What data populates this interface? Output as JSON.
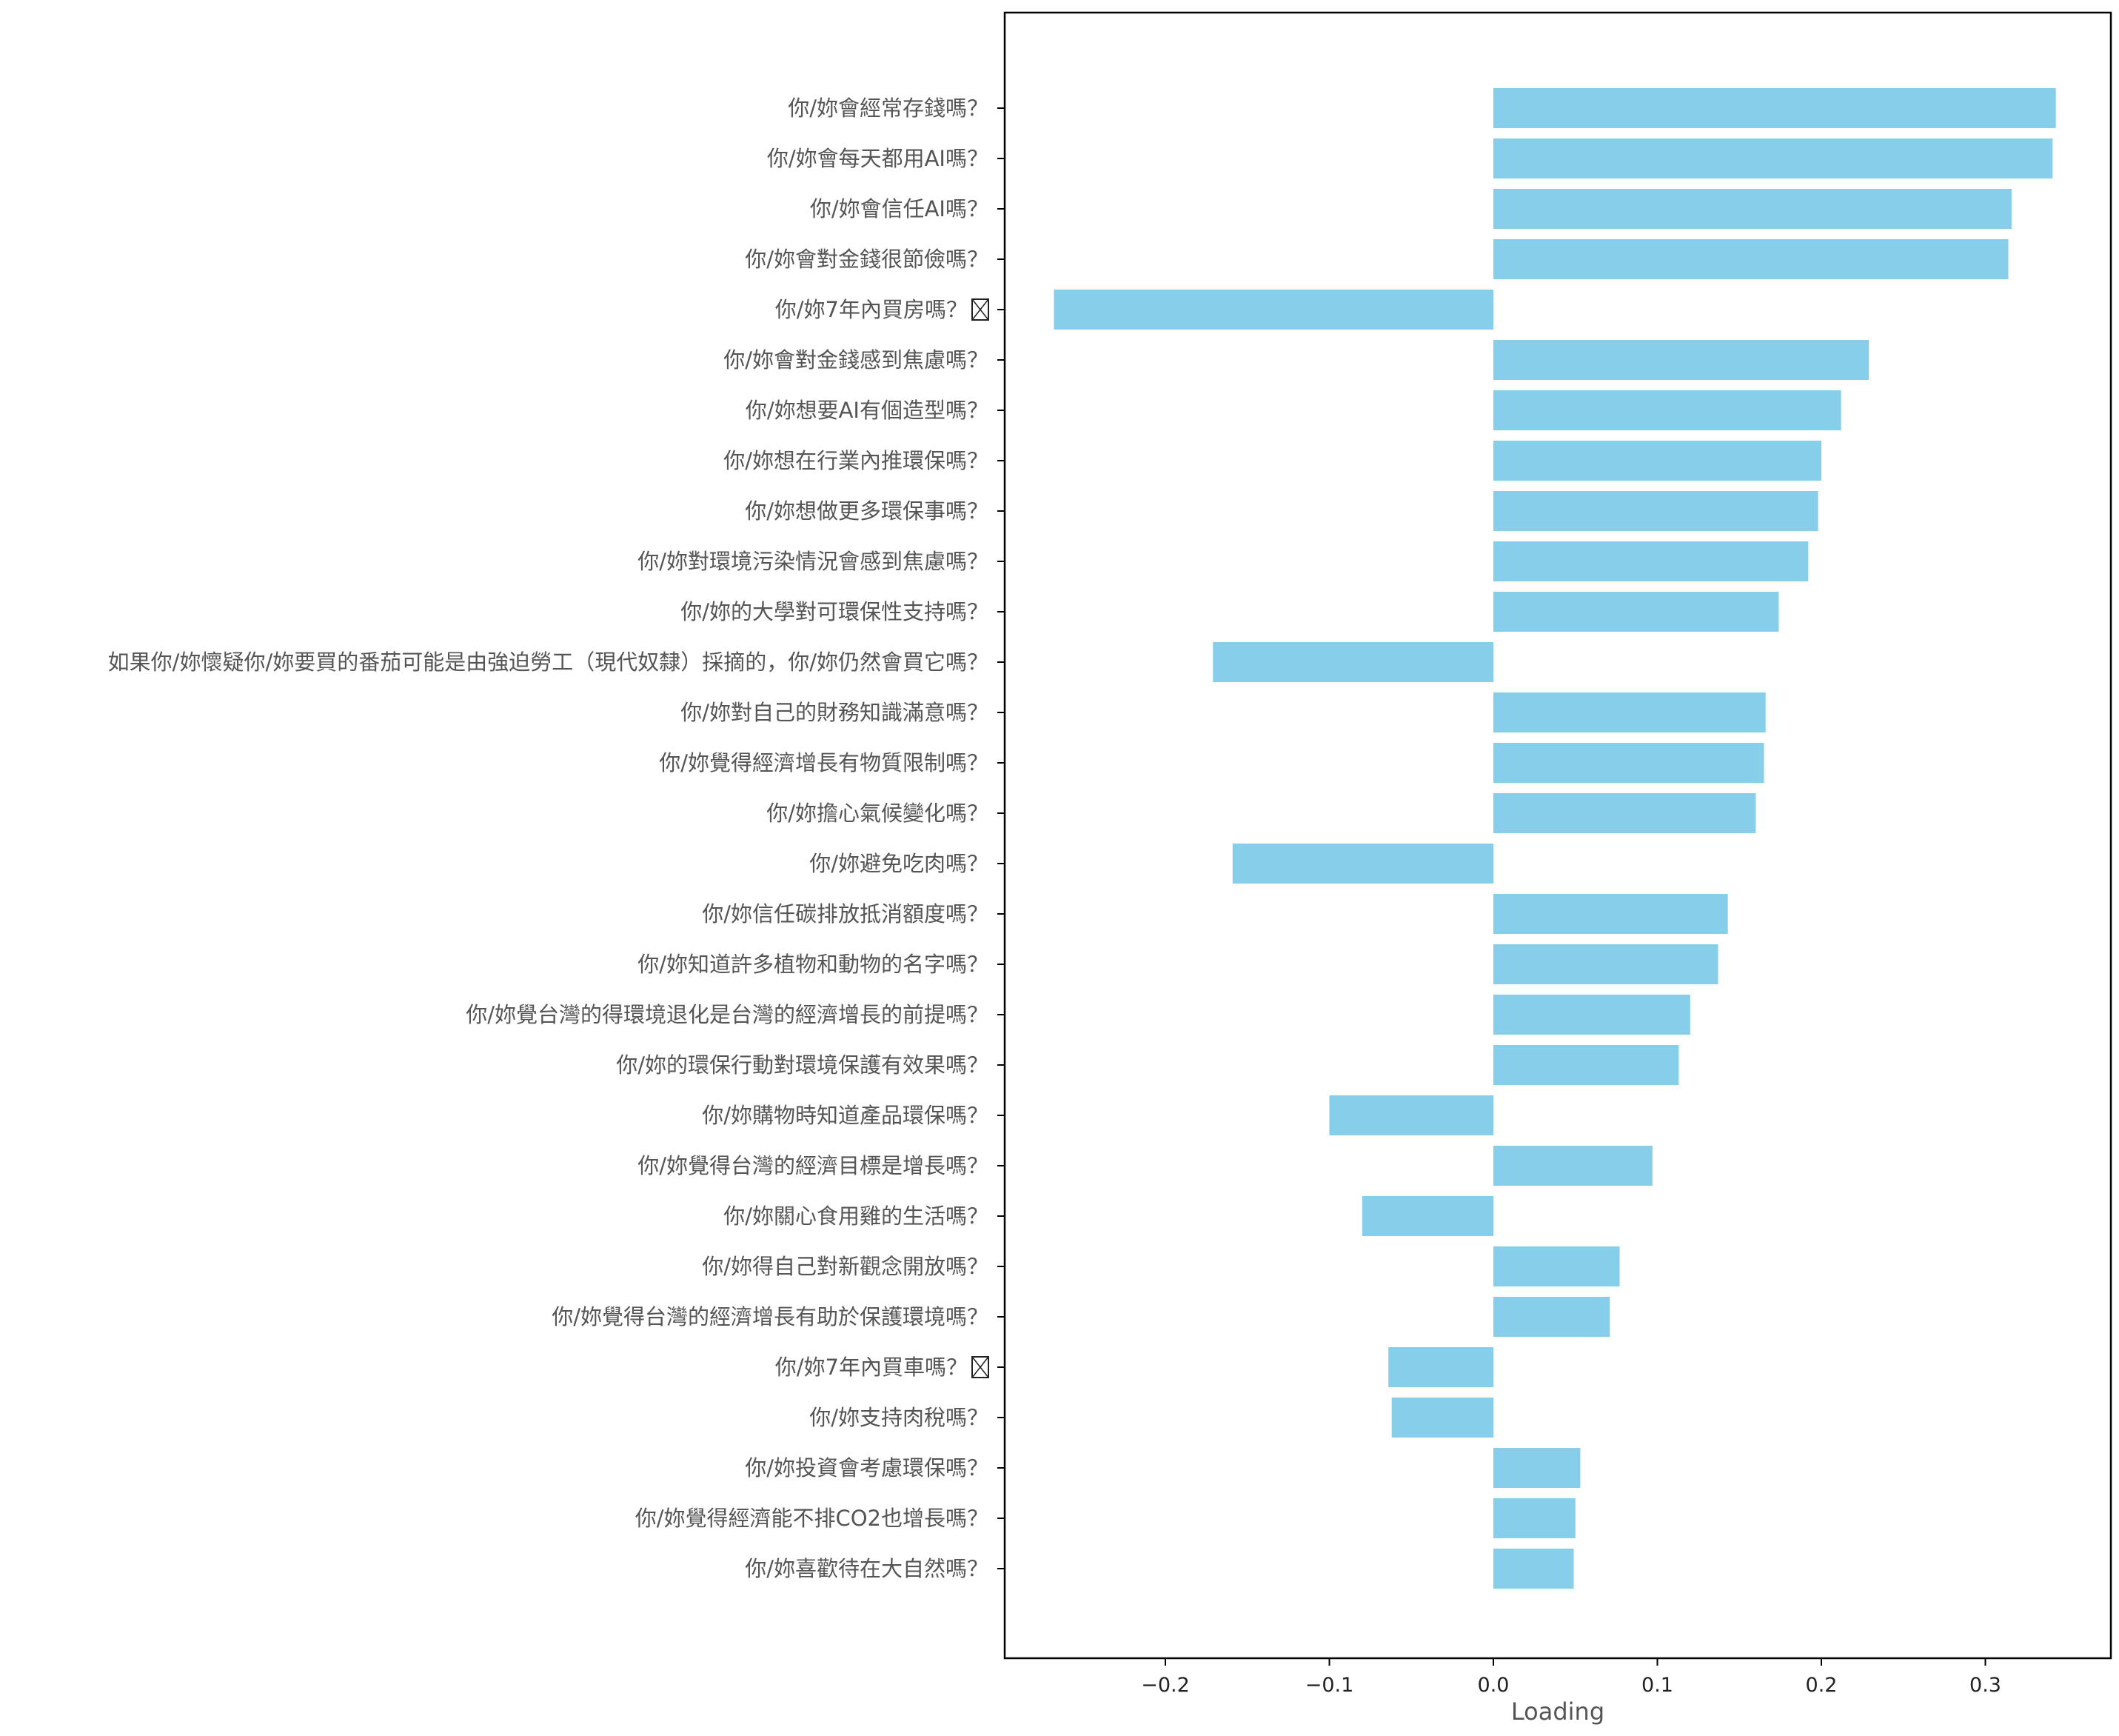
{
  "chart_data": {
    "type": "bar",
    "orientation": "horizontal",
    "xlabel": "Loading",
    "ylabel": "",
    "title": "",
    "xlim": [
      -0.3,
      0.37
    ],
    "xticks": [
      -0.2,
      -0.1,
      0.0,
      0.1,
      0.2,
      0.3
    ],
    "xtick_labels": [
      "−0.2",
      "−0.1",
      "0.0",
      "0.1",
      "0.2",
      "0.3"
    ],
    "grid": false,
    "bar_color": "#87CEEB",
    "categories": [
      "你/妳會經常存錢嗎？",
      "你/妳會每天都用AI嗎？",
      "你/妳會信任AI嗎？",
      "你/妳會對金錢很節儉嗎？",
      "你/妳7年內買房嗎？",
      "你/妳會對金錢感到焦慮嗎？",
      "你/妳想要AI有個造型嗎？",
      "你/妳想在行業內推環保嗎？",
      "你/妳想做更多環保事嗎？",
      "你/妳對環境污染情況會感到焦慮嗎？",
      "你/妳的大學對可環保性支持嗎？",
      "如果你/妳懷疑你/妳要買的番茄可能是由強迫勞工（現代奴隸）採摘的，你/妳仍然會買它嗎？",
      "你/妳對自己的財務知識滿意嗎？",
      "你/妳覺得經濟增長有物質限制嗎？",
      "你/妳擔心氣候變化嗎？",
      "你/妳避免吃肉嗎？",
      "你/妳信任碳排放抵消額度嗎？",
      "你/妳知道許多植物和動物的名字嗎？",
      "你/妳覺台灣的得環境退化是台灣的經濟增長的前提嗎？",
      "你/妳的環保行動對環境保護有效果嗎？",
      "你/妳購物時知道產品環保嗎？",
      "你/妳覺得台灣的經濟目標是增長嗎？",
      "你/妳關心食用雞的生活嗎？",
      "你/妳得自己對新觀念開放嗎？",
      "你/妳覺得台灣的經濟增長有助於保護環境嗎？",
      "你/妳7年內買車嗎？",
      "你/妳支持肉稅嗎？",
      "你/妳投資會考慮環保嗎？",
      "你/妳覺得經濟能不排CO2也增長嗎？",
      "你/妳喜歡待在大自然嗎？"
    ],
    "glyph_boxes": [
      4,
      25
    ],
    "values": [
      0.343,
      0.341,
      0.316,
      0.314,
      -0.268,
      0.229,
      0.212,
      0.2,
      0.198,
      0.192,
      0.174,
      -0.171,
      0.166,
      0.165,
      0.16,
      -0.159,
      0.143,
      0.137,
      0.12,
      0.113,
      -0.1,
      0.097,
      -0.08,
      0.077,
      0.071,
      -0.064,
      -0.062,
      0.053,
      0.05,
      0.049
    ]
  }
}
